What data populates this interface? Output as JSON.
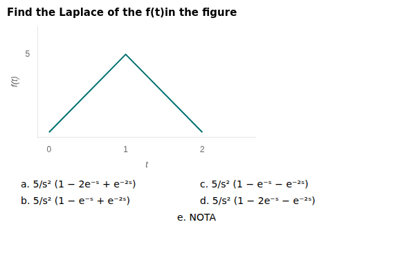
{
  "chart_data": {
    "type": "line",
    "title": "Find the Laplace of the f(t)in the figure",
    "x": [
      0,
      1,
      2
    ],
    "values": [
      0,
      5,
      0
    ],
    "color": "#007070",
    "xlabel": "t",
    "ylabel": "f(t)",
    "xlim": [
      -0.15,
      2.7
    ],
    "ylim": [
      -0.3,
      6.8
    ],
    "xticks": [
      0,
      1,
      2
    ],
    "yticks": [
      5
    ],
    "grid": false,
    "annotations": [
      "a. 5/s² (1 − 2e⁻ˢ + e⁻²ˢ)",
      "c. 5/s² (1 − e⁻ˢ − e⁻²ˢ)",
      "b. 5/s² (1 − e⁻ˢ + e⁻²ˢ)",
      "d. 5/s² (1 − 2e⁻ˢ − e⁻²ˢ)",
      "e.  NOTA"
    ]
  }
}
